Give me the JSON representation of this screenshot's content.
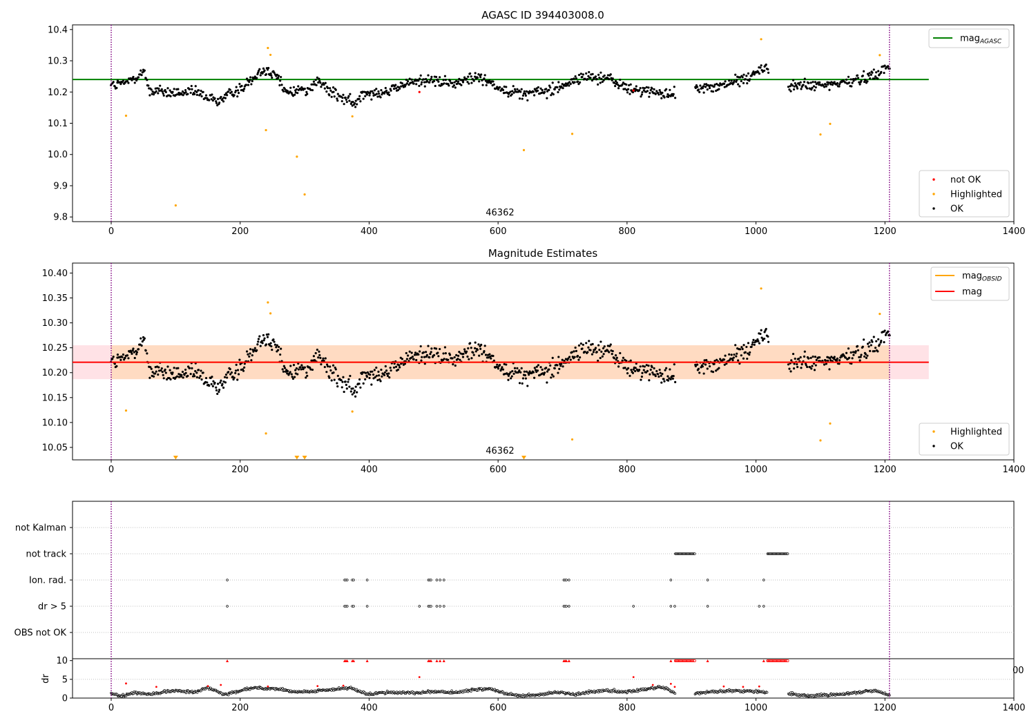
{
  "figure_title": "AGASC ID 394403008.0",
  "colors": {
    "green_line": "#008000",
    "orange_line": "#ffa500",
    "red_line": "#ff0000",
    "band_fill": "#ffb6c1",
    "obs_band": "#ffdab9",
    "obs_line": "#800080",
    "ok": "#000000",
    "highlight": "#ffa500",
    "not_ok": "#ff0000"
  },
  "chart_data": [
    {
      "type": "scatter",
      "title": "",
      "xlim": [
        -60,
        1400
      ],
      "ylim": [
        9.785,
        10.415
      ],
      "xticks": [
        0,
        200,
        400,
        600,
        800,
        1000,
        1200,
        1400
      ],
      "yticks": [
        9.8,
        9.9,
        10.0,
        10.1,
        10.2,
        10.3,
        10.4
      ],
      "obs_boundaries": [
        0,
        1207
      ],
      "obsid_label": "46362",
      "hlines": [
        {
          "name": "mag_AGASC",
          "value": 10.24,
          "x": [
            -60,
            1268
          ],
          "color": "#008000"
        }
      ],
      "legend_lines": [
        {
          "base": "mag",
          "sub": "AGASC",
          "color": "#008000"
        }
      ],
      "legend_points": [
        {
          "name": "not OK",
          "color": "#ff0000"
        },
        {
          "name": "Highlighted",
          "color": "#ffa500"
        },
        {
          "name": "OK",
          "color": "#000000"
        }
      ],
      "highlighted": [
        [
          23,
          10.124
        ],
        [
          240,
          10.078
        ],
        [
          243,
          10.341
        ],
        [
          247,
          10.319
        ],
        [
          288,
          9.993
        ],
        [
          100,
          9.837
        ],
        [
          300,
          9.872
        ],
        [
          374,
          10.122
        ],
        [
          640,
          10.014
        ],
        [
          715,
          10.066
        ],
        [
          1008,
          10.369
        ],
        [
          1100,
          10.064
        ],
        [
          1115,
          10.098
        ],
        [
          1192,
          10.318
        ]
      ],
      "not_ok": [
        [
          478,
          10.2
        ],
        [
          810,
          10.205
        ]
      ],
      "ok_trend": [
        [
          0,
          10.22
        ],
        [
          20,
          10.225
        ],
        [
          50,
          10.265
        ],
        [
          60,
          10.205
        ],
        [
          100,
          10.195
        ],
        [
          130,
          10.2
        ],
        [
          165,
          10.17
        ],
        [
          180,
          10.19
        ],
        [
          205,
          10.215
        ],
        [
          230,
          10.27
        ],
        [
          255,
          10.26
        ],
        [
          270,
          10.2
        ],
        [
          305,
          10.21
        ],
        [
          320,
          10.235
        ],
        [
          340,
          10.2
        ],
        [
          380,
          10.16
        ],
        [
          390,
          10.2
        ],
        [
          430,
          10.2
        ],
        [
          460,
          10.23
        ],
        [
          490,
          10.24
        ],
        [
          530,
          10.225
        ],
        [
          570,
          10.25
        ],
        [
          605,
          10.21
        ],
        [
          640,
          10.195
        ],
        [
          680,
          10.205
        ],
        [
          710,
          10.23
        ],
        [
          740,
          10.25
        ],
        [
          770,
          10.245
        ],
        [
          800,
          10.21
        ],
        [
          840,
          10.2
        ],
        [
          870,
          10.19
        ],
        [
          910,
          10.215
        ],
        [
          940,
          10.215
        ],
        [
          970,
          10.235
        ],
        [
          1000,
          10.26
        ],
        [
          1015,
          10.28
        ],
        [
          1050,
          10.22
        ],
        [
          1100,
          10.22
        ],
        [
          1140,
          10.23
        ],
        [
          1180,
          10.255
        ],
        [
          1207,
          10.28
        ]
      ],
      "gaps": [
        [
          875,
          905
        ],
        [
          1020,
          1050
        ]
      ],
      "spread": 0.026,
      "n_points": 1050
    },
    {
      "type": "scatter",
      "title": "Magnitude Estimates",
      "xlim": [
        -60,
        1400
      ],
      "ylim": [
        10.025,
        10.42
      ],
      "xticks": [
        0,
        200,
        400,
        600,
        800,
        1000,
        1200,
        1400
      ],
      "yticks": [
        10.05,
        10.1,
        10.15,
        10.2,
        10.25,
        10.3,
        10.35,
        10.4
      ],
      "obs_boundaries": [
        0,
        1207
      ],
      "obsid_label": "46362",
      "band": {
        "y0": 10.187,
        "y1": 10.255,
        "x": [
          -60,
          1268
        ],
        "color": "#ffb6c1"
      },
      "obs_band": {
        "y0": 10.187,
        "y1": 10.255,
        "x": [
          0,
          1207
        ],
        "color": "#ffdab9"
      },
      "hlines": [
        {
          "name": "mag_OBSID",
          "value": 10.221,
          "x": [
            0,
            1207
          ],
          "color": "#ffa500"
        },
        {
          "name": "mag",
          "value": 10.221,
          "x": [
            -60,
            1268
          ],
          "color": "#ff0000"
        }
      ],
      "legend_lines": [
        {
          "base": "mag",
          "sub": "OBSID",
          "color": "#ffa500"
        },
        {
          "base": "mag",
          "sub": "",
          "color": "#ff0000"
        }
      ],
      "legend_points": [
        {
          "name": "Highlighted",
          "color": "#ffa500"
        },
        {
          "name": "OK",
          "color": "#000000"
        }
      ],
      "highlighted": [
        [
          23,
          10.124
        ],
        [
          240,
          10.078
        ],
        [
          243,
          10.341
        ],
        [
          247,
          10.319
        ],
        [
          374,
          10.122
        ],
        [
          715,
          10.066
        ],
        [
          1008,
          10.369
        ],
        [
          1100,
          10.064
        ],
        [
          1115,
          10.098
        ],
        [
          1192,
          10.318
        ]
      ],
      "clipped_low": [
        100,
        288,
        300,
        640
      ],
      "ok_trend": "same_as_panel_1",
      "gaps": [
        [
          875,
          905
        ],
        [
          1020,
          1050
        ]
      ],
      "spread": 0.026,
      "n_points": 1050
    },
    {
      "type": "scatter",
      "title": "",
      "xlim": [
        -60,
        1400
      ],
      "categories": [
        "not Kalman",
        "not track",
        "Ion. rad.",
        "dr > 5",
        "OBS not OK"
      ],
      "obs_boundaries": [
        0,
        1207
      ],
      "flags": {
        "not track": {
          "ranges": [
            [
              875,
              905
            ],
            [
              1018,
              1050
            ]
          ]
        },
        "Ion. rad.": {
          "points": [
            180,
            362,
            364,
            366,
            374,
            376,
            397,
            492,
            494,
            496,
            505,
            510,
            516,
            702,
            704,
            706,
            710,
            868,
            925,
            1012
          ]
        },
        "dr > 5": {
          "points": [
            180,
            362,
            364,
            366,
            374,
            376,
            397,
            478,
            492,
            494,
            496,
            505,
            510,
            516,
            702,
            704,
            706,
            710,
            810,
            868,
            874,
            925,
            1005,
            1012
          ]
        }
      }
    },
    {
      "type": "scatter",
      "title": "",
      "ylabel": "dr",
      "xlim": [
        -60,
        1400
      ],
      "ylim": [
        0,
        10.5
      ],
      "yticks": [
        0,
        5,
        10
      ],
      "xticks": [
        0,
        200,
        400,
        600,
        800,
        1000,
        1200,
        1400
      ],
      "obs_boundaries": [
        0,
        1207
      ],
      "clipped_x": [
        180,
        362,
        364,
        366,
        374,
        376,
        397,
        492,
        494,
        496,
        505,
        510,
        516,
        702,
        704,
        706,
        710,
        868,
        925,
        1012,
        1020
      ],
      "clipped_ranges": [
        [
          875,
          905
        ],
        [
          1018,
          1050
        ]
      ],
      "red_points": [
        [
          23,
          3.9
        ],
        [
          70,
          3.0
        ],
        [
          150,
          3.2
        ],
        [
          170,
          3.5
        ],
        [
          243,
          3.1
        ],
        [
          320,
          3.2
        ],
        [
          360,
          3.3
        ],
        [
          478,
          5.6
        ],
        [
          810,
          5.6
        ],
        [
          840,
          3.5
        ],
        [
          868,
          3.8
        ],
        [
          874,
          3.0
        ],
        [
          950,
          3.1
        ],
        [
          980,
          3.0
        ],
        [
          1005,
          3.1
        ]
      ],
      "dr_trend": [
        [
          0,
          1.2
        ],
        [
          15,
          0.5
        ],
        [
          40,
          1.5
        ],
        [
          60,
          1.0
        ],
        [
          80,
          1.6
        ],
        [
          100,
          2.0
        ],
        [
          130,
          1.6
        ],
        [
          150,
          2.8
        ],
        [
          175,
          1.0
        ],
        [
          190,
          1.4
        ],
        [
          220,
          2.8
        ],
        [
          260,
          2.4
        ],
        [
          290,
          1.6
        ],
        [
          330,
          2.0
        ],
        [
          370,
          2.8
        ],
        [
          395,
          1.0
        ],
        [
          430,
          1.6
        ],
        [
          470,
          1.4
        ],
        [
          500,
          1.7
        ],
        [
          540,
          1.5
        ],
        [
          560,
          2.2
        ],
        [
          590,
          2.5
        ],
        [
          610,
          1.2
        ],
        [
          640,
          0.5
        ],
        [
          670,
          1.0
        ],
        [
          690,
          1.6
        ],
        [
          720,
          1.0
        ],
        [
          760,
          2.0
        ],
        [
          800,
          1.6
        ],
        [
          830,
          2.4
        ],
        [
          850,
          3.0
        ],
        [
          862,
          2.6
        ],
        [
          875,
          1.0
        ],
        [
          930,
          1.6
        ],
        [
          970,
          2.0
        ],
        [
          1010,
          1.6
        ],
        [
          1050,
          1.2
        ],
        [
          1080,
          0.6
        ],
        [
          1130,
          1.0
        ],
        [
          1160,
          1.6
        ],
        [
          1185,
          2.0
        ],
        [
          1207,
          0.7
        ]
      ],
      "dr_gaps": [
        [
          875,
          905
        ],
        [
          1018,
          1050
        ]
      ],
      "cut_tick_label": "00"
    }
  ]
}
